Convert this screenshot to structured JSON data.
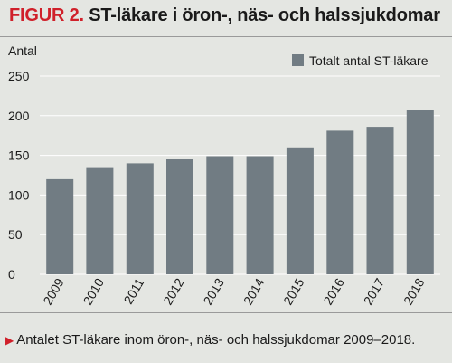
{
  "header": {
    "figure_label": "FIGUR 2.",
    "title_text": "ST-läkare i öron-, näs- och halssjukdomar"
  },
  "caption": {
    "text": "Antalet ST-läkare inom öron-, näs- och halssjukdomar 2009–2018."
  },
  "colors": {
    "bar": "#717c83",
    "accent": "#d0202a",
    "background": "#e4e6e2",
    "grid": "#ffffff"
  },
  "chart_data": {
    "type": "bar",
    "ylabel": "Antal",
    "xlabel": "",
    "ylim": [
      0,
      250
    ],
    "yticks": [
      0,
      50,
      100,
      150,
      200,
      250
    ],
    "grid": true,
    "legend_position": "top-right",
    "categories": [
      "2009",
      "2010",
      "2011",
      "2012",
      "2013",
      "2014",
      "2015",
      "2016",
      "2017",
      "2018"
    ],
    "series": [
      {
        "name": "Totalt antal ST-läkare",
        "values": [
          120,
          134,
          140,
          145,
          149,
          149,
          160,
          181,
          186,
          207
        ]
      }
    ]
  }
}
